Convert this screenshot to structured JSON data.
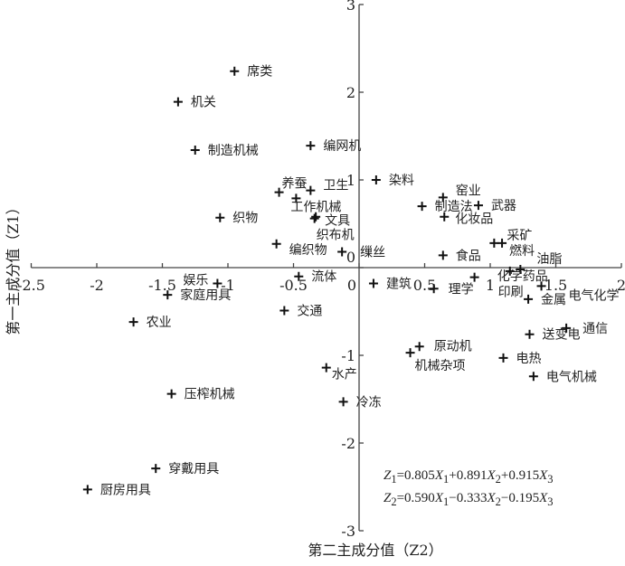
{
  "chart_data": {
    "type": "scatter",
    "title": "",
    "xlabel": "第二主成分值（Z2）",
    "ylabel": "第一主成分值（Z1）",
    "xlim": [
      -2.5,
      2
    ],
    "ylim": [
      -3,
      3
    ],
    "xticks": [
      -2.5,
      -2,
      -1.5,
      -1,
      -0.5,
      0,
      0.5,
      1,
      1.5,
      2
    ],
    "xtick_labels": [
      "-2.5",
      "-2",
      "-1.5",
      "-1",
      "-0.5",
      "0",
      "0.5",
      "1",
      "1.5",
      "2"
    ],
    "yticks": [
      -3,
      -2,
      -1,
      0,
      1,
      2,
      3
    ],
    "ytick_labels": [
      "-3",
      "-2",
      "-1",
      "0",
      "1",
      "2",
      "3"
    ],
    "grid": false,
    "marker": "+",
    "points": [
      {
        "label": "席类",
        "x": -0.95,
        "y": 2.24
      },
      {
        "label": "机关",
        "x": -1.38,
        "y": 1.89
      },
      {
        "label": "制造机械",
        "x": -1.25,
        "y": 1.34
      },
      {
        "label": "编网机",
        "x": -0.37,
        "y": 1.39
      },
      {
        "label": "染料",
        "x": 0.13,
        "y": 1.0
      },
      {
        "label": "养蚕",
        "x": -0.61,
        "y": 0.86
      },
      {
        "label": "卫生",
        "x": -0.37,
        "y": 0.88
      },
      {
        "label": "工作机械",
        "x": -0.48,
        "y": 0.79
      },
      {
        "label": "织物",
        "x": -1.06,
        "y": 0.57
      },
      {
        "label": "文具",
        "x": -0.33,
        "y": 0.58
      },
      {
        "label": "织布机",
        "x": -0.34,
        "y": 0.56
      },
      {
        "label": "编织物",
        "x": -0.63,
        "y": 0.27
      },
      {
        "label": "缫丝",
        "x": -0.13,
        "y": 0.18
      },
      {
        "label": "流体",
        "x": -0.46,
        "y": -0.1
      },
      {
        "label": "建筑",
        "x": 0.11,
        "y": -0.18
      },
      {
        "label": "窑业",
        "x": 0.64,
        "y": 0.8
      },
      {
        "label": "制造法",
        "x": 0.48,
        "y": 0.7
      },
      {
        "label": "武器",
        "x": 0.91,
        "y": 0.71
      },
      {
        "label": "化妆品",
        "x": 0.65,
        "y": 0.58
      },
      {
        "label": "食品",
        "x": 0.64,
        "y": 0.14
      },
      {
        "label": "采矿",
        "x": 1.03,
        "y": 0.28
      },
      {
        "label": "燃料",
        "x": 1.09,
        "y": 0.28
      },
      {
        "label": "油脂",
        "x": 1.23,
        "y": -0.02
      },
      {
        "label": "化学药品",
        "x": 1.15,
        "y": -0.04
      },
      {
        "label": "理学",
        "x": 0.57,
        "y": -0.24
      },
      {
        "label": "印刷",
        "x": 0.88,
        "y": -0.11
      },
      {
        "label": "电气化学",
        "x": 1.39,
        "y": -0.21
      },
      {
        "label": "金属",
        "x": 1.29,
        "y": -0.36
      },
      {
        "label": "通信",
        "x": 1.58,
        "y": -0.69
      },
      {
        "label": "送变电",
        "x": 1.3,
        "y": -0.76
      },
      {
        "label": "原动机",
        "x": 0.46,
        "y": -0.9
      },
      {
        "label": "机械杂项",
        "x": 0.39,
        "y": -0.97
      },
      {
        "label": "电热",
        "x": 1.1,
        "y": -1.03
      },
      {
        "label": "电气机械",
        "x": 1.33,
        "y": -1.24
      },
      {
        "label": "水产",
        "x": -0.25,
        "y": -1.14
      },
      {
        "label": "冷冻",
        "x": -0.12,
        "y": -1.53
      },
      {
        "label": "娱乐",
        "x": -1.08,
        "y": -0.18
      },
      {
        "label": "家庭用具",
        "x": -1.46,
        "y": -0.31
      },
      {
        "label": "农业",
        "x": -1.72,
        "y": -0.62
      },
      {
        "label": "交通",
        "x": -0.57,
        "y": -0.49
      },
      {
        "label": "压榨机械",
        "x": -1.43,
        "y": -1.44
      },
      {
        "label": "穿戴用具",
        "x": -1.55,
        "y": -2.29
      },
      {
        "label": "厨房用具",
        "x": -2.07,
        "y": -2.53
      }
    ],
    "annotations": {
      "eq1": {
        "lhs": "Z",
        "lhs_sub": "1",
        "terms": [
          "=0.805",
          "X",
          "1",
          "+0.891",
          "X",
          "2",
          "+0.915",
          "X",
          "3"
        ]
      },
      "eq2": {
        "lhs": "Z",
        "lhs_sub": "2",
        "terms": [
          "=0.590",
          "X",
          "1",
          "−0.333",
          "X",
          "2",
          "−0.195",
          "X",
          "3"
        ]
      }
    }
  }
}
